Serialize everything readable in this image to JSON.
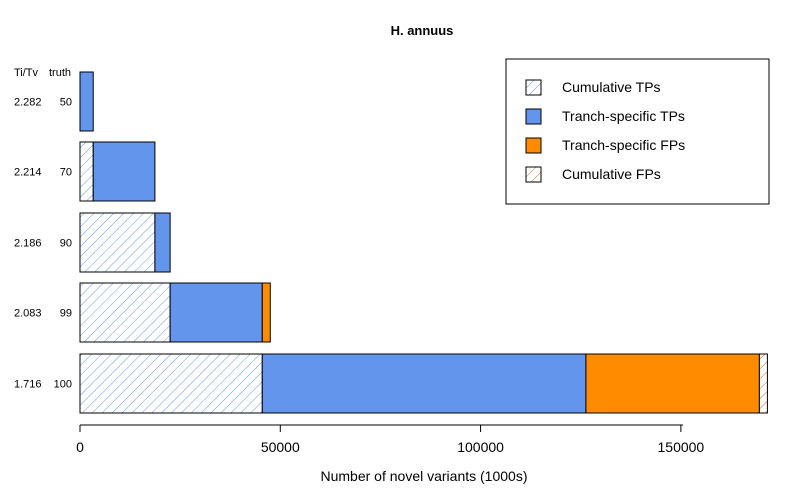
{
  "chart_data": {
    "type": "bar",
    "orientation": "horizontal",
    "stacked": true,
    "title": "H. annuus",
    "xlabel": "Number of novel variants (1000s)",
    "row_header": [
      "Ti/Tv",
      "truth"
    ],
    "rows": [
      {
        "titv": "2.282",
        "truth": "50"
      },
      {
        "titv": "2.214",
        "truth": "70"
      },
      {
        "titv": "2.186",
        "truth": "90"
      },
      {
        "titv": "2.083",
        "truth": "99"
      },
      {
        "titv": "1.716",
        "truth": "100"
      }
    ],
    "series": [
      {
        "name": "Cumulative TPs",
        "values": [
          0,
          3300,
          18700,
          22500,
          45500
        ]
      },
      {
        "name": "Tranch-specific TPs",
        "values": [
          3300,
          15400,
          3800,
          23000,
          80800
        ]
      },
      {
        "name": "Tranch-specific FPs",
        "values": [
          0,
          0,
          0,
          2000,
          43300
        ]
      },
      {
        "name": "Cumulative FPs",
        "values": [
          0,
          0,
          0,
          0,
          2000
        ]
      }
    ],
    "xlim": [
      0,
      172000
    ],
    "xticks": [
      0,
      50000,
      100000,
      150000
    ],
    "legend_position": "top-right",
    "colors": {
      "cumulative_tp": "#6495ED",
      "tranch_tp": "#6495ED",
      "tranch_fp": "#FF8C00",
      "cumulative_fp": "#E8A050"
    }
  }
}
